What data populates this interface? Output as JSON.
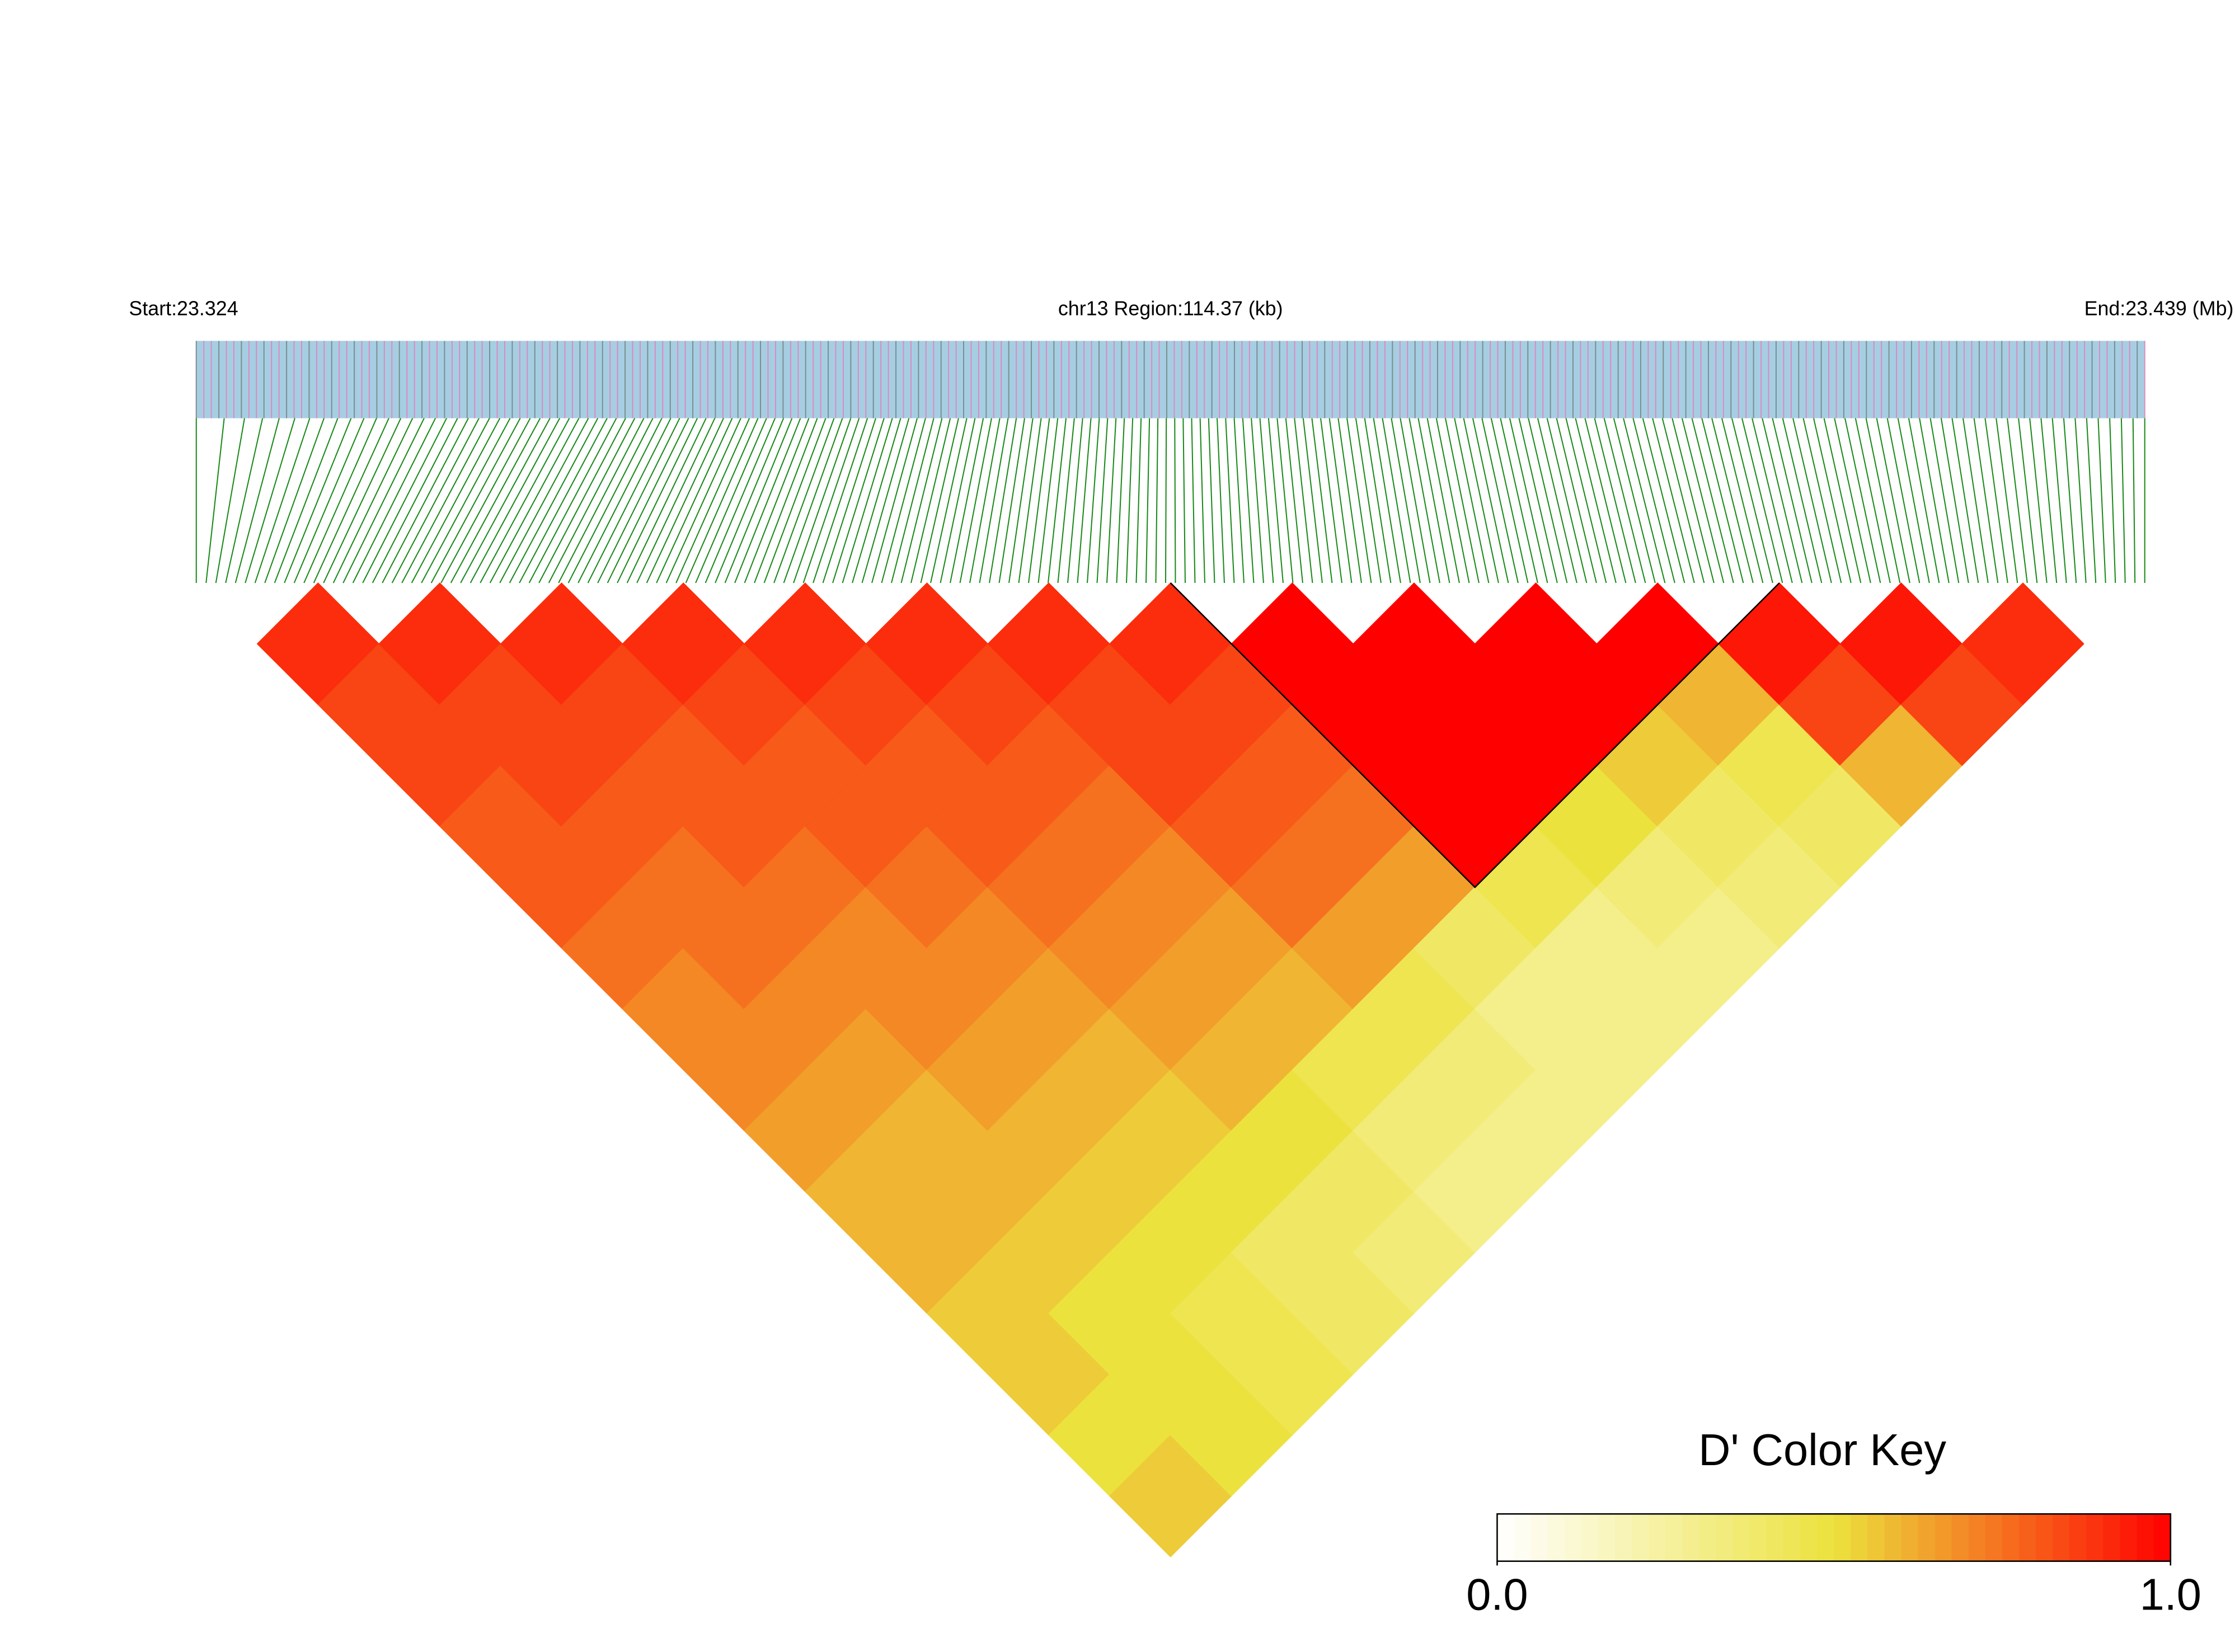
{
  "chart_data": {
    "type": "ld_heatmap",
    "start_label": "Start:23.324",
    "region_label": "chr13 Region:114.37 (kb)",
    "end_label": "End:23.439 (Mb)",
    "key_title": "D' Color Key",
    "clim": [
      0,
      1
    ],
    "key_ticks": [
      {
        "value": 0,
        "label": "0.0"
      },
      {
        "value": 1,
        "label": "1.0"
      }
    ],
    "colors": [
      "#ffffff",
      "#ece23e",
      "#ff0000"
    ],
    "blocks": [
      {
        "start": 8,
        "end": 12
      }
    ],
    "matrix": [
      [
        0.9,
        0.85,
        0.85,
        0.8,
        0.8,
        0.75,
        0.7,
        0.7,
        0.65,
        0.6,
        0.6,
        0.55,
        0.55,
        0.5,
        0.55
      ],
      [
        0.9,
        0.85,
        0.85,
        0.8,
        0.75,
        0.75,
        0.7,
        0.65,
        0.6,
        0.6,
        0.55,
        0.5,
        0.5,
        0.5
      ],
      [
        0.9,
        0.85,
        0.8,
        0.8,
        0.75,
        0.7,
        0.7,
        0.65,
        0.6,
        0.55,
        0.5,
        0.45,
        0.45
      ],
      [
        0.9,
        0.85,
        0.8,
        0.8,
        0.75,
        0.7,
        0.65,
        0.6,
        0.55,
        0.5,
        0.4,
        0.4
      ],
      [
        0.9,
        0.85,
        0.8,
        0.8,
        0.75,
        0.7,
        0.65,
        0.6,
        0.5,
        0.4,
        0.35
      ],
      [
        0.9,
        0.85,
        0.8,
        0.75,
        0.7,
        0.65,
        0.6,
        0.45,
        0.35,
        0.3
      ],
      [
        0.9,
        0.85,
        0.85,
        0.8,
        0.75,
        0.65,
        0.45,
        0.35,
        0.3
      ],
      [
        0.9,
        0.85,
        0.8,
        0.75,
        0.65,
        0.4,
        0.3,
        0.3
      ],
      [
        1,
        1,
        1,
        1,
        0.45,
        0.3,
        0.3
      ],
      [
        1,
        1,
        1,
        0.5,
        0.35,
        0.3
      ],
      [
        1,
        1,
        0.55,
        0.4,
        0.35
      ],
      [
        1,
        0.6,
        0.45,
        0.4
      ],
      [
        0.95,
        0.85,
        0.6
      ],
      [
        0.95,
        0.85
      ],
      [
        0.9
      ]
    ]
  }
}
